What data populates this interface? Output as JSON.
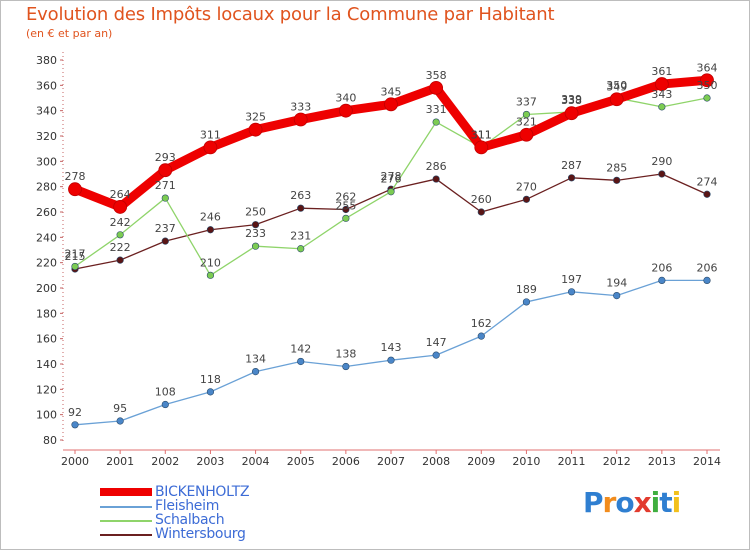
{
  "title": "Evolution des Impôts locaux pour la Commune par Habitant",
  "subtitle": "(en € et par an)",
  "logo": {
    "text": "Proxiti",
    "letters": [
      {
        "ch": "P",
        "color": "#2f7fd1"
      },
      {
        "ch": "r",
        "color": "#f28c1c"
      },
      {
        "ch": "o",
        "color": "#2f7fd1"
      },
      {
        "ch": "x",
        "color": "#e23b2e"
      },
      {
        "ch": "i",
        "color": "#3fae3f"
      },
      {
        "ch": "t",
        "color": "#2f7fd1"
      },
      {
        "ch": "i",
        "color": "#f2c01c"
      }
    ]
  },
  "chart_data": {
    "type": "line",
    "title": "Evolution des Impôts locaux pour la Commune par Habitant",
    "ylabel": "(en € et par an)",
    "x": [
      "2000",
      "2001",
      "2002",
      "2003",
      "2004",
      "2005",
      "2006",
      "2007",
      "2008",
      "2009",
      "2010",
      "2011",
      "2012",
      "2013",
      "2014"
    ],
    "ylim": [
      80,
      380
    ],
    "yticks": [
      80,
      100,
      120,
      140,
      160,
      180,
      200,
      220,
      240,
      260,
      280,
      300,
      320,
      340,
      360,
      380
    ],
    "grid": false,
    "legend_position": "bottom-left",
    "series": [
      {
        "name": "BICKENHOLTZ",
        "color": "#ee0000",
        "marker": "#ee0000",
        "values": [
          278,
          264,
          293,
          311,
          325,
          333,
          340,
          345,
          358,
          311,
          321,
          338,
          349,
          361,
          364
        ],
        "label_above": true
      },
      {
        "name": "Fleisheim",
        "color": "#6aa1d6",
        "marker": "#4a86c8",
        "values": [
          92,
          95,
          108,
          118,
          134,
          142,
          138,
          143,
          147,
          162,
          189,
          197,
          194,
          206,
          206
        ],
        "label_above": true
      },
      {
        "name": "Schalbach",
        "color": "#8fd46a",
        "marker": "#7ccc52",
        "values": [
          217,
          242,
          271,
          210,
          233,
          231,
          255,
          276,
          331,
          311,
          337,
          339,
          350,
          343,
          350
        ],
        "label_above": true
      },
      {
        "name": "Wintersbourg",
        "color": "#6b2020",
        "marker": "#5a1515",
        "values": [
          215,
          222,
          237,
          246,
          250,
          263,
          262,
          278,
          286,
          260,
          270,
          287,
          285,
          290,
          274
        ],
        "label_above": true
      }
    ]
  }
}
